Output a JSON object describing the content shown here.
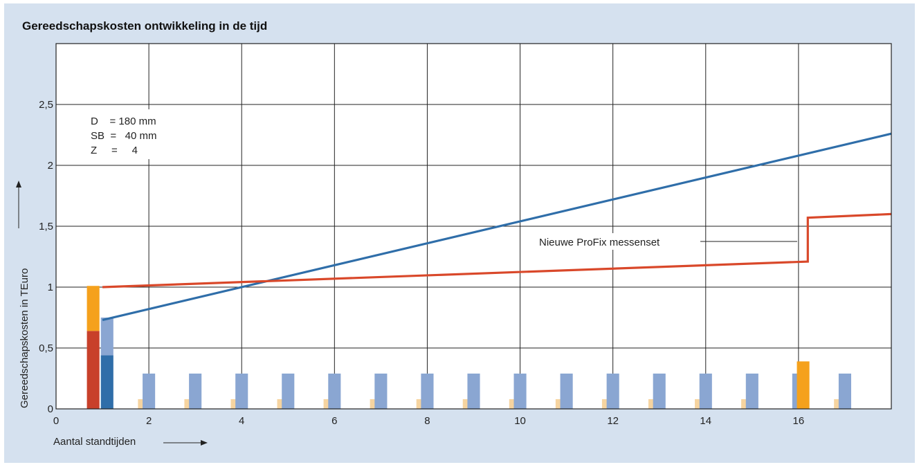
{
  "chart_data": {
    "type": "bar",
    "title": "Gereedschapskosten ontwikkeling in de tijd",
    "xlabel": "Aantal standtijden",
    "ylabel": "Gereedschapskosten in TEuro",
    "xlim": [
      0,
      18
    ],
    "ylim": [
      0,
      3
    ],
    "x_ticks": [
      0,
      2,
      4,
      6,
      8,
      10,
      12,
      14,
      16
    ],
    "x_tick_labels": [
      "0",
      "2",
      "4",
      "6",
      "8",
      "10",
      "12",
      "14",
      "16"
    ],
    "y_ticks": [
      0,
      0.5,
      1,
      1.5,
      2,
      2.5
    ],
    "y_tick_labels": [
      "0",
      "0,5",
      "1",
      "1,5",
      "2",
      "2,5"
    ],
    "grid": true,
    "colors": {
      "blue_line": "#2f6ea9",
      "red_line": "#d9482a",
      "orange": "#f5a11c",
      "dark_red": "#c8402a",
      "dark_blue": "#2f6ea9",
      "light_blue": "#8aa6d2",
      "beige": "#f6d4a0",
      "grid": "#222222"
    },
    "series": [
      {
        "type": "line",
        "color": "blue_line",
        "x": [
          1,
          18
        ],
        "y": [
          0.73,
          2.26
        ]
      },
      {
        "type": "line",
        "color": "red_line",
        "x": [
          1,
          16.2,
          16.2,
          18
        ],
        "y": [
          1.0,
          1.21,
          1.57,
          1.6
        ]
      }
    ],
    "stacked_bars": [
      {
        "x": 0.8,
        "segments": [
          {
            "value": 0.64,
            "color": "dark_red"
          },
          {
            "value": 0.37,
            "color": "orange"
          }
        ]
      },
      {
        "x": 1.1,
        "segments": [
          {
            "value": 0.44,
            "color": "dark_blue"
          },
          {
            "value": 0.31,
            "color": "light_blue"
          }
        ]
      }
    ],
    "small_bars": {
      "blue": {
        "color": "light_blue",
        "value": 0.29,
        "x": [
          2,
          3,
          4,
          5,
          6,
          7,
          8,
          9,
          10,
          11,
          12,
          13,
          14,
          15,
          16,
          17
        ]
      },
      "beige": {
        "color": "beige",
        "value": 0.08,
        "x": [
          1.9,
          2.9,
          3.9,
          4.9,
          5.9,
          6.9,
          7.9,
          8.9,
          9.9,
          10.9,
          11.9,
          12.9,
          13.9,
          14.9,
          16.9
        ]
      },
      "orange": {
        "color": "orange",
        "value": 0.39,
        "x": [
          16.1
        ]
      }
    },
    "params": [
      "D    = 180 mm",
      "SB  =   40 mm",
      "Z     =     4"
    ],
    "callout": "Nieuwe ProFix messenset"
  }
}
